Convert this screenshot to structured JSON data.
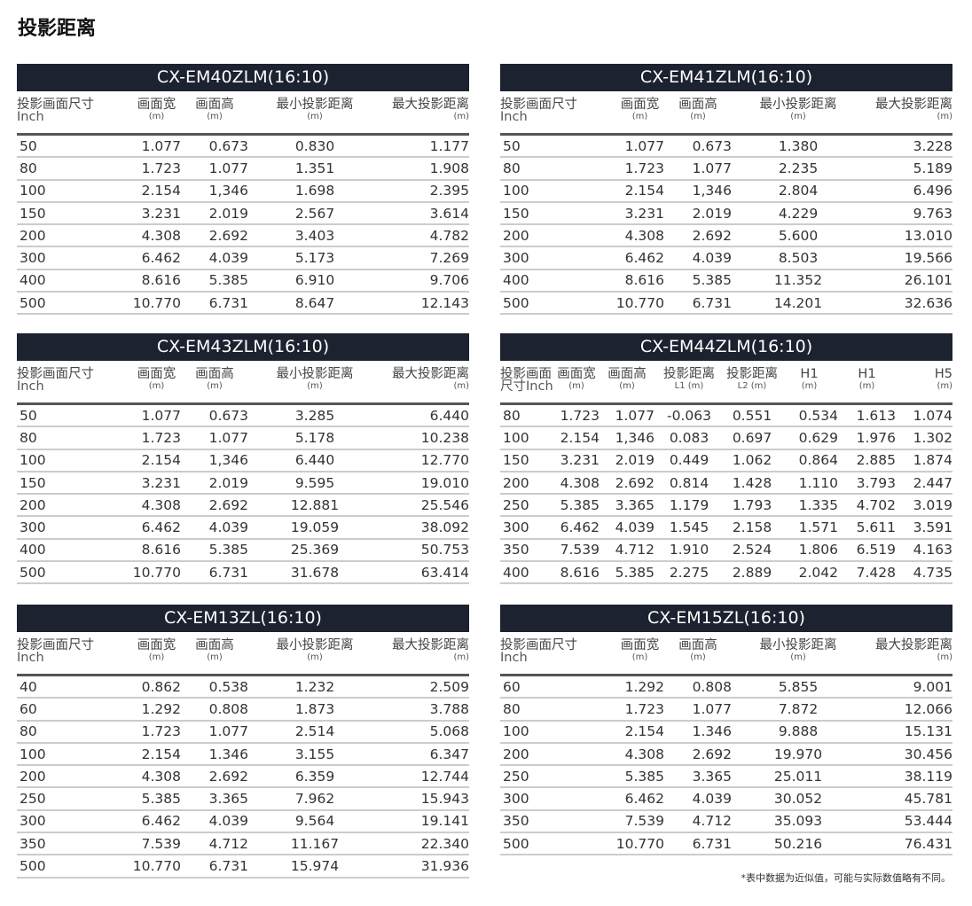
{
  "title": "投影距离",
  "footnote": "*表中数据为近似值，可能与实际数值略有不同。",
  "tables": [
    {
      "model": "CX-EM40ZLM(16:10)",
      "headers": [
        [
          "投影画面尺寸",
          "Inch"
        ],
        [
          "画面宽",
          "(m)"
        ],
        [
          "画面高",
          "(m)"
        ],
        [
          "最小投影距离",
          "(m)"
        ],
        [
          "最大投影距离",
          "(m)"
        ]
      ],
      "rows": [
        [
          "50",
          "1.077",
          "0.673",
          "0.830",
          "1.177"
        ],
        [
          "80",
          "1.723",
          "1.077",
          "1.351",
          "1.908"
        ],
        [
          "100",
          "2.154",
          "1,346",
          "1.698",
          "2.395"
        ],
        [
          "150",
          "3.231",
          "2.019",
          "2.567",
          "3.614"
        ],
        [
          "200",
          "4.308",
          "2.692",
          "3.403",
          "4.782"
        ],
        [
          "300",
          "6.462",
          "4.039",
          "5.173",
          "7.269"
        ],
        [
          "400",
          "8.616",
          "5.385",
          "6.910",
          "9.706"
        ],
        [
          "500",
          "10.770",
          "6.731",
          "8.647",
          "12.143"
        ]
      ]
    },
    {
      "model": "CX-EM41ZLM(16:10)",
      "headers": [
        [
          "投影画面尺寸",
          "Inch"
        ],
        [
          "画面宽",
          "(m)"
        ],
        [
          "画面高",
          "(m)"
        ],
        [
          "最小投影距离",
          "(m)"
        ],
        [
          "最大投影距离",
          "(m)"
        ]
      ],
      "rows": [
        [
          "50",
          "1.077",
          "0.673",
          "1.380",
          "3.228"
        ],
        [
          "80",
          "1.723",
          "1.077",
          "2.235",
          "5.189"
        ],
        [
          "100",
          "2.154",
          "1,346",
          "2.804",
          "6.496"
        ],
        [
          "150",
          "3.231",
          "2.019",
          "4.229",
          "9.763"
        ],
        [
          "200",
          "4.308",
          "2.692",
          "5.600",
          "13.010"
        ],
        [
          "300",
          "6.462",
          "4.039",
          "8.503",
          "19.566"
        ],
        [
          "400",
          "8.616",
          "5.385",
          "11.352",
          "26.101"
        ],
        [
          "500",
          "10.770",
          "6.731",
          "14.201",
          "32.636"
        ]
      ]
    },
    {
      "model": "CX-EM43ZLM(16:10)",
      "headers": [
        [
          "投影画面尺寸",
          "Inch"
        ],
        [
          "画面宽",
          "(m)"
        ],
        [
          "画面高",
          "(m)"
        ],
        [
          "最小投影距离",
          "(m)"
        ],
        [
          "最大投影距离",
          "(m)"
        ]
      ],
      "rows": [
        [
          "50",
          "1.077",
          "0.673",
          "3.285",
          "6.440"
        ],
        [
          "80",
          "1.723",
          "1.077",
          "5.178",
          "10.238"
        ],
        [
          "100",
          "2.154",
          "1,346",
          "6.440",
          "12.770"
        ],
        [
          "150",
          "3.231",
          "2.019",
          "9.595",
          "19.010"
        ],
        [
          "200",
          "4.308",
          "2.692",
          "12.881",
          "25.546"
        ],
        [
          "300",
          "6.462",
          "4.039",
          "19.059",
          "38.092"
        ],
        [
          "400",
          "8.616",
          "5.385",
          "25.369",
          "50.753"
        ],
        [
          "500",
          "10.770",
          "6.731",
          "31.678",
          "63.414"
        ]
      ]
    },
    {
      "model": "CX-EM44ZLM(16:10)",
      "headers": [
        [
          "投影画面",
          "尺寸Inch"
        ],
        [
          "画面宽",
          "(m)"
        ],
        [
          "画面高",
          "(m)"
        ],
        [
          "投影距离",
          "L1 (m)"
        ],
        [
          "投影距离",
          "L2 (m)"
        ],
        [
          "H1",
          "(m)"
        ],
        [
          "H1",
          "(m)"
        ],
        [
          "H5",
          "(m)"
        ]
      ],
      "rows": [
        [
          "80",
          "1.723",
          "1.077",
          "-0.063",
          "0.551",
          "0.534",
          "1.613",
          "1.074"
        ],
        [
          "100",
          "2.154",
          "1,346",
          "0.083",
          "0.697",
          "0.629",
          "1.976",
          "1.302"
        ],
        [
          "150",
          "3.231",
          "2.019",
          "0.449",
          "1.062",
          "0.864",
          "2.885",
          "1.874"
        ],
        [
          "200",
          "4.308",
          "2.692",
          "0.814",
          "1.428",
          "1.110",
          "3.793",
          "2.447"
        ],
        [
          "250",
          "5.385",
          "3.365",
          "1.179",
          "1.793",
          "1.335",
          "4.702",
          "3.019"
        ],
        [
          "300",
          "6.462",
          "4.039",
          "1.545",
          "2.158",
          "1.571",
          "5.611",
          "3.591"
        ],
        [
          "350",
          "7.539",
          "4.712",
          "1.910",
          "2.524",
          "1.806",
          "6.519",
          "4.163"
        ],
        [
          "400",
          "8.616",
          "5.385",
          "2.275",
          "2.889",
          "2.042",
          "7.428",
          "4.735"
        ]
      ]
    },
    {
      "model": "CX-EM13ZL(16:10)",
      "headers": [
        [
          "投影画面尺寸",
          "Inch"
        ],
        [
          "画面宽",
          "(m)"
        ],
        [
          "画面高",
          "(m)"
        ],
        [
          "最小投影距离",
          "(m)"
        ],
        [
          "最大投影距离",
          "(m)"
        ]
      ],
      "rows": [
        [
          "40",
          "0.862",
          "0.538",
          "1.232",
          "2.509"
        ],
        [
          "60",
          "1.292",
          "0.808",
          "1.873",
          "3.788"
        ],
        [
          "80",
          "1.723",
          "1.077",
          "2.514",
          "5.068"
        ],
        [
          "100",
          "2.154",
          "1.346",
          "3.155",
          "6.347"
        ],
        [
          "200",
          "4.308",
          "2.692",
          "6.359",
          "12.744"
        ],
        [
          "250",
          "5.385",
          "3.365",
          "7.962",
          "15.943"
        ],
        [
          "300",
          "6.462",
          "4.039",
          "9.564",
          "19.141"
        ],
        [
          "350",
          "7.539",
          "4.712",
          "11.167",
          "22.340"
        ],
        [
          "500",
          "10.770",
          "6.731",
          "15.974",
          "31.936"
        ]
      ]
    },
    {
      "model": "CX-EM15ZL(16:10)",
      "headers": [
        [
          "投影画面尺寸",
          "Inch"
        ],
        [
          "画面宽",
          "(m)"
        ],
        [
          "画面高",
          "(m)"
        ],
        [
          "最小投影距离",
          "(m)"
        ],
        [
          "最大投影距离",
          "(m)"
        ]
      ],
      "rows": [
        [
          "60",
          "1.292",
          "0.808",
          "5.855",
          "9.001"
        ],
        [
          "80",
          "1.723",
          "1.077",
          "7.872",
          "12.066"
        ],
        [
          "100",
          "2.154",
          "1.346",
          "9.888",
          "15.131"
        ],
        [
          "200",
          "4.308",
          "2.692",
          "19.970",
          "30.456"
        ],
        [
          "250",
          "5.385",
          "3.365",
          "25.011",
          "38.119"
        ],
        [
          "300",
          "6.462",
          "4.039",
          "30.052",
          "45.781"
        ],
        [
          "350",
          "7.539",
          "4.712",
          "35.093",
          "53.444"
        ],
        [
          "500",
          "10.770",
          "6.731",
          "50.216",
          "76.431"
        ]
      ]
    }
  ]
}
